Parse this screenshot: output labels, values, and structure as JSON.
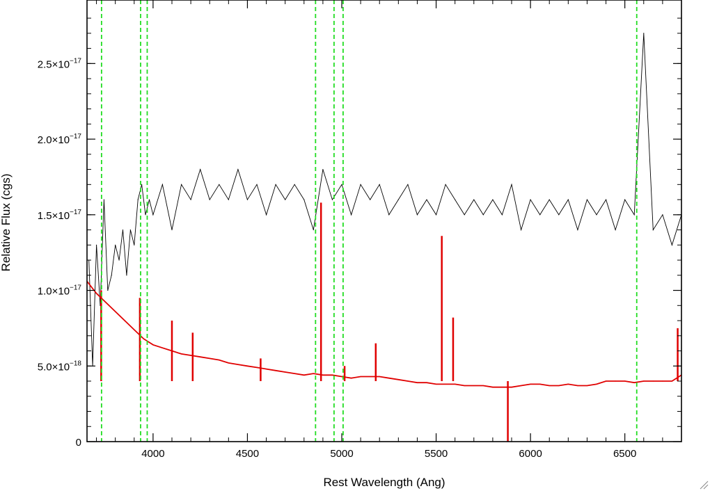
{
  "chart_data": {
    "type": "line",
    "xlabel": "Rest Wavelength (Ang)",
    "ylabel": "Relative Flux (cgs)",
    "xlim": [
      3650,
      6800
    ],
    "ylim": [
      0,
      2.92e-17
    ],
    "grid": false,
    "x_ticks": [
      {
        "value": 4000,
        "label": "4000"
      },
      {
        "value": 4500,
        "label": "4500"
      },
      {
        "value": 5000,
        "label": "5000"
      },
      {
        "value": 5500,
        "label": "5500"
      },
      {
        "value": 6000,
        "label": "6000"
      },
      {
        "value": 6500,
        "label": "6500"
      }
    ],
    "y_ticks": [
      {
        "value": 0,
        "label": "0",
        "exp": ""
      },
      {
        "value": 5e-18,
        "label": "5.0×10",
        "exp": "−18"
      },
      {
        "value": 1e-17,
        "label": "1.0×10",
        "exp": "−17"
      },
      {
        "value": 1.5e-17,
        "label": "1.5×10",
        "exp": "−17"
      },
      {
        "value": 2e-17,
        "label": "2.0×10",
        "exp": "−17"
      },
      {
        "value": 2.5e-17,
        "label": "2.5×10",
        "exp": "−17"
      }
    ],
    "series": [
      {
        "color": "#000000",
        "x": [
          3660,
          3680,
          3700,
          3720,
          3740,
          3760,
          3780,
          3800,
          3820,
          3840,
          3860,
          3880,
          3900,
          3920,
          3940,
          3960,
          3980,
          4000,
          4050,
          4100,
          4150,
          4200,
          4250,
          4300,
          4350,
          4400,
          4450,
          4500,
          4550,
          4600,
          4650,
          4700,
          4750,
          4800,
          4850,
          4900,
          4950,
          5000,
          5050,
          5100,
          5150,
          5200,
          5250,
          5300,
          5350,
          5400,
          5450,
          5500,
          5550,
          5600,
          5650,
          5700,
          5750,
          5800,
          5850,
          5900,
          5950,
          6000,
          6050,
          6100,
          6150,
          6200,
          6250,
          6300,
          6350,
          6400,
          6450,
          6500,
          6550,
          6600,
          6650,
          6700,
          6750,
          6800
        ],
        "y": [
          1.2e-17,
          5e-18,
          1.3e-17,
          9e-18,
          1.6e-17,
          1e-17,
          1.1e-17,
          1.3e-17,
          1.2e-17,
          1.4e-17,
          1.1e-17,
          1.4e-17,
          1.3e-17,
          1.6e-17,
          1.7e-17,
          1.5e-17,
          1.6e-17,
          1.5e-17,
          1.7e-17,
          1.4e-17,
          1.7e-17,
          1.6e-17,
          1.8e-17,
          1.6e-17,
          1.7e-17,
          1.6e-17,
          1.8e-17,
          1.6e-17,
          1.7e-17,
          1.5e-17,
          1.7e-17,
          1.6e-17,
          1.7e-17,
          1.6e-17,
          1.4e-17,
          1.8e-17,
          1.6e-17,
          1.7e-17,
          1.5e-17,
          1.7e-17,
          1.6e-17,
          1.7e-17,
          1.5e-17,
          1.6e-17,
          1.7e-17,
          1.5e-17,
          1.6e-17,
          1.5e-17,
          1.7e-17,
          1.6e-17,
          1.5e-17,
          1.6e-17,
          1.5e-17,
          1.6e-17,
          1.5e-17,
          1.7e-17,
          1.4e-17,
          1.6e-17,
          1.5e-17,
          1.6e-17,
          1.5e-17,
          1.6e-17,
          1.4e-17,
          1.6e-17,
          1.5e-17,
          1.6e-17,
          1.4e-17,
          1.6e-17,
          1.5e-17,
          2.7e-17,
          1.4e-17,
          1.5e-17,
          1.3e-17,
          1.5e-17
        ]
      },
      {
        "color": "#e00000",
        "x": [
          3650,
          3700,
          3750,
          3800,
          3850,
          3900,
          3950,
          4000,
          4050,
          4100,
          4150,
          4200,
          4250,
          4300,
          4350,
          4400,
          4450,
          4500,
          4550,
          4600,
          4650,
          4700,
          4750,
          4800,
          4850,
          4900,
          4950,
          5000,
          5050,
          5100,
          5150,
          5200,
          5250,
          5300,
          5350,
          5400,
          5450,
          5500,
          5550,
          5600,
          5650,
          5700,
          5750,
          5800,
          5850,
          5900,
          5950,
          6000,
          6050,
          6100,
          6150,
          6200,
          6250,
          6300,
          6350,
          6400,
          6450,
          6500,
          6550,
          6600,
          6650,
          6700,
          6750,
          6800
        ],
        "y": [
          1.06e-17,
          9.8e-18,
          9.2e-18,
          8.6e-18,
          8e-18,
          7.4e-18,
          6.8e-18,
          6.4e-18,
          6.2e-18,
          6e-18,
          5.8e-18,
          5.7e-18,
          5.6e-18,
          5.5e-18,
          5.4e-18,
          5.2e-18,
          5.1e-18,
          5e-18,
          4.9e-18,
          4.8e-18,
          4.7e-18,
          4.6e-18,
          4.5e-18,
          4.4e-18,
          4.5e-18,
          4.4e-18,
          4.4e-18,
          4.3e-18,
          4.2e-18,
          4.3e-18,
          4.3e-18,
          4.3e-18,
          4.2e-18,
          4.1e-18,
          4e-18,
          3.9e-18,
          3.9e-18,
          3.8e-18,
          3.8e-18,
          3.8e-18,
          3.7e-18,
          3.7e-18,
          3.7e-18,
          3.6e-18,
          3.6e-18,
          3.6e-18,
          3.7e-18,
          3.8e-18,
          3.8e-18,
          3.7e-18,
          3.7e-18,
          3.8e-18,
          3.7e-18,
          3.7e-18,
          3.8e-18,
          4e-18,
          4e-18,
          4e-18,
          3.9e-18,
          4e-18,
          4e-18,
          4e-18,
          4e-18,
          4.4e-18
        ],
        "spikes": [
          {
            "x": 3725,
            "y": 1e-17
          },
          {
            "x": 3930,
            "y": 9.5e-18
          },
          {
            "x": 4100,
            "y": 8e-18
          },
          {
            "x": 4210,
            "y": 7.2e-18
          },
          {
            "x": 4570,
            "y": 5.5e-18
          },
          {
            "x": 4890,
            "y": 1.58e-17
          },
          {
            "x": 5015,
            "y": 5e-18
          },
          {
            "x": 5180,
            "y": 6.5e-18
          },
          {
            "x": 5530,
            "y": 1.36e-17
          },
          {
            "x": 5590,
            "y": 8.2e-18
          },
          {
            "x": 5880,
            "y": 0.0
          },
          {
            "x": 6780,
            "y": 7.5e-18
          }
        ]
      }
    ],
    "vlines": [
      3727,
      3934,
      3969,
      4861,
      4959,
      5007,
      6563
    ]
  },
  "colors": {
    "spectrum": "#000000",
    "model": "#e00000",
    "markers": "#22dd22"
  }
}
